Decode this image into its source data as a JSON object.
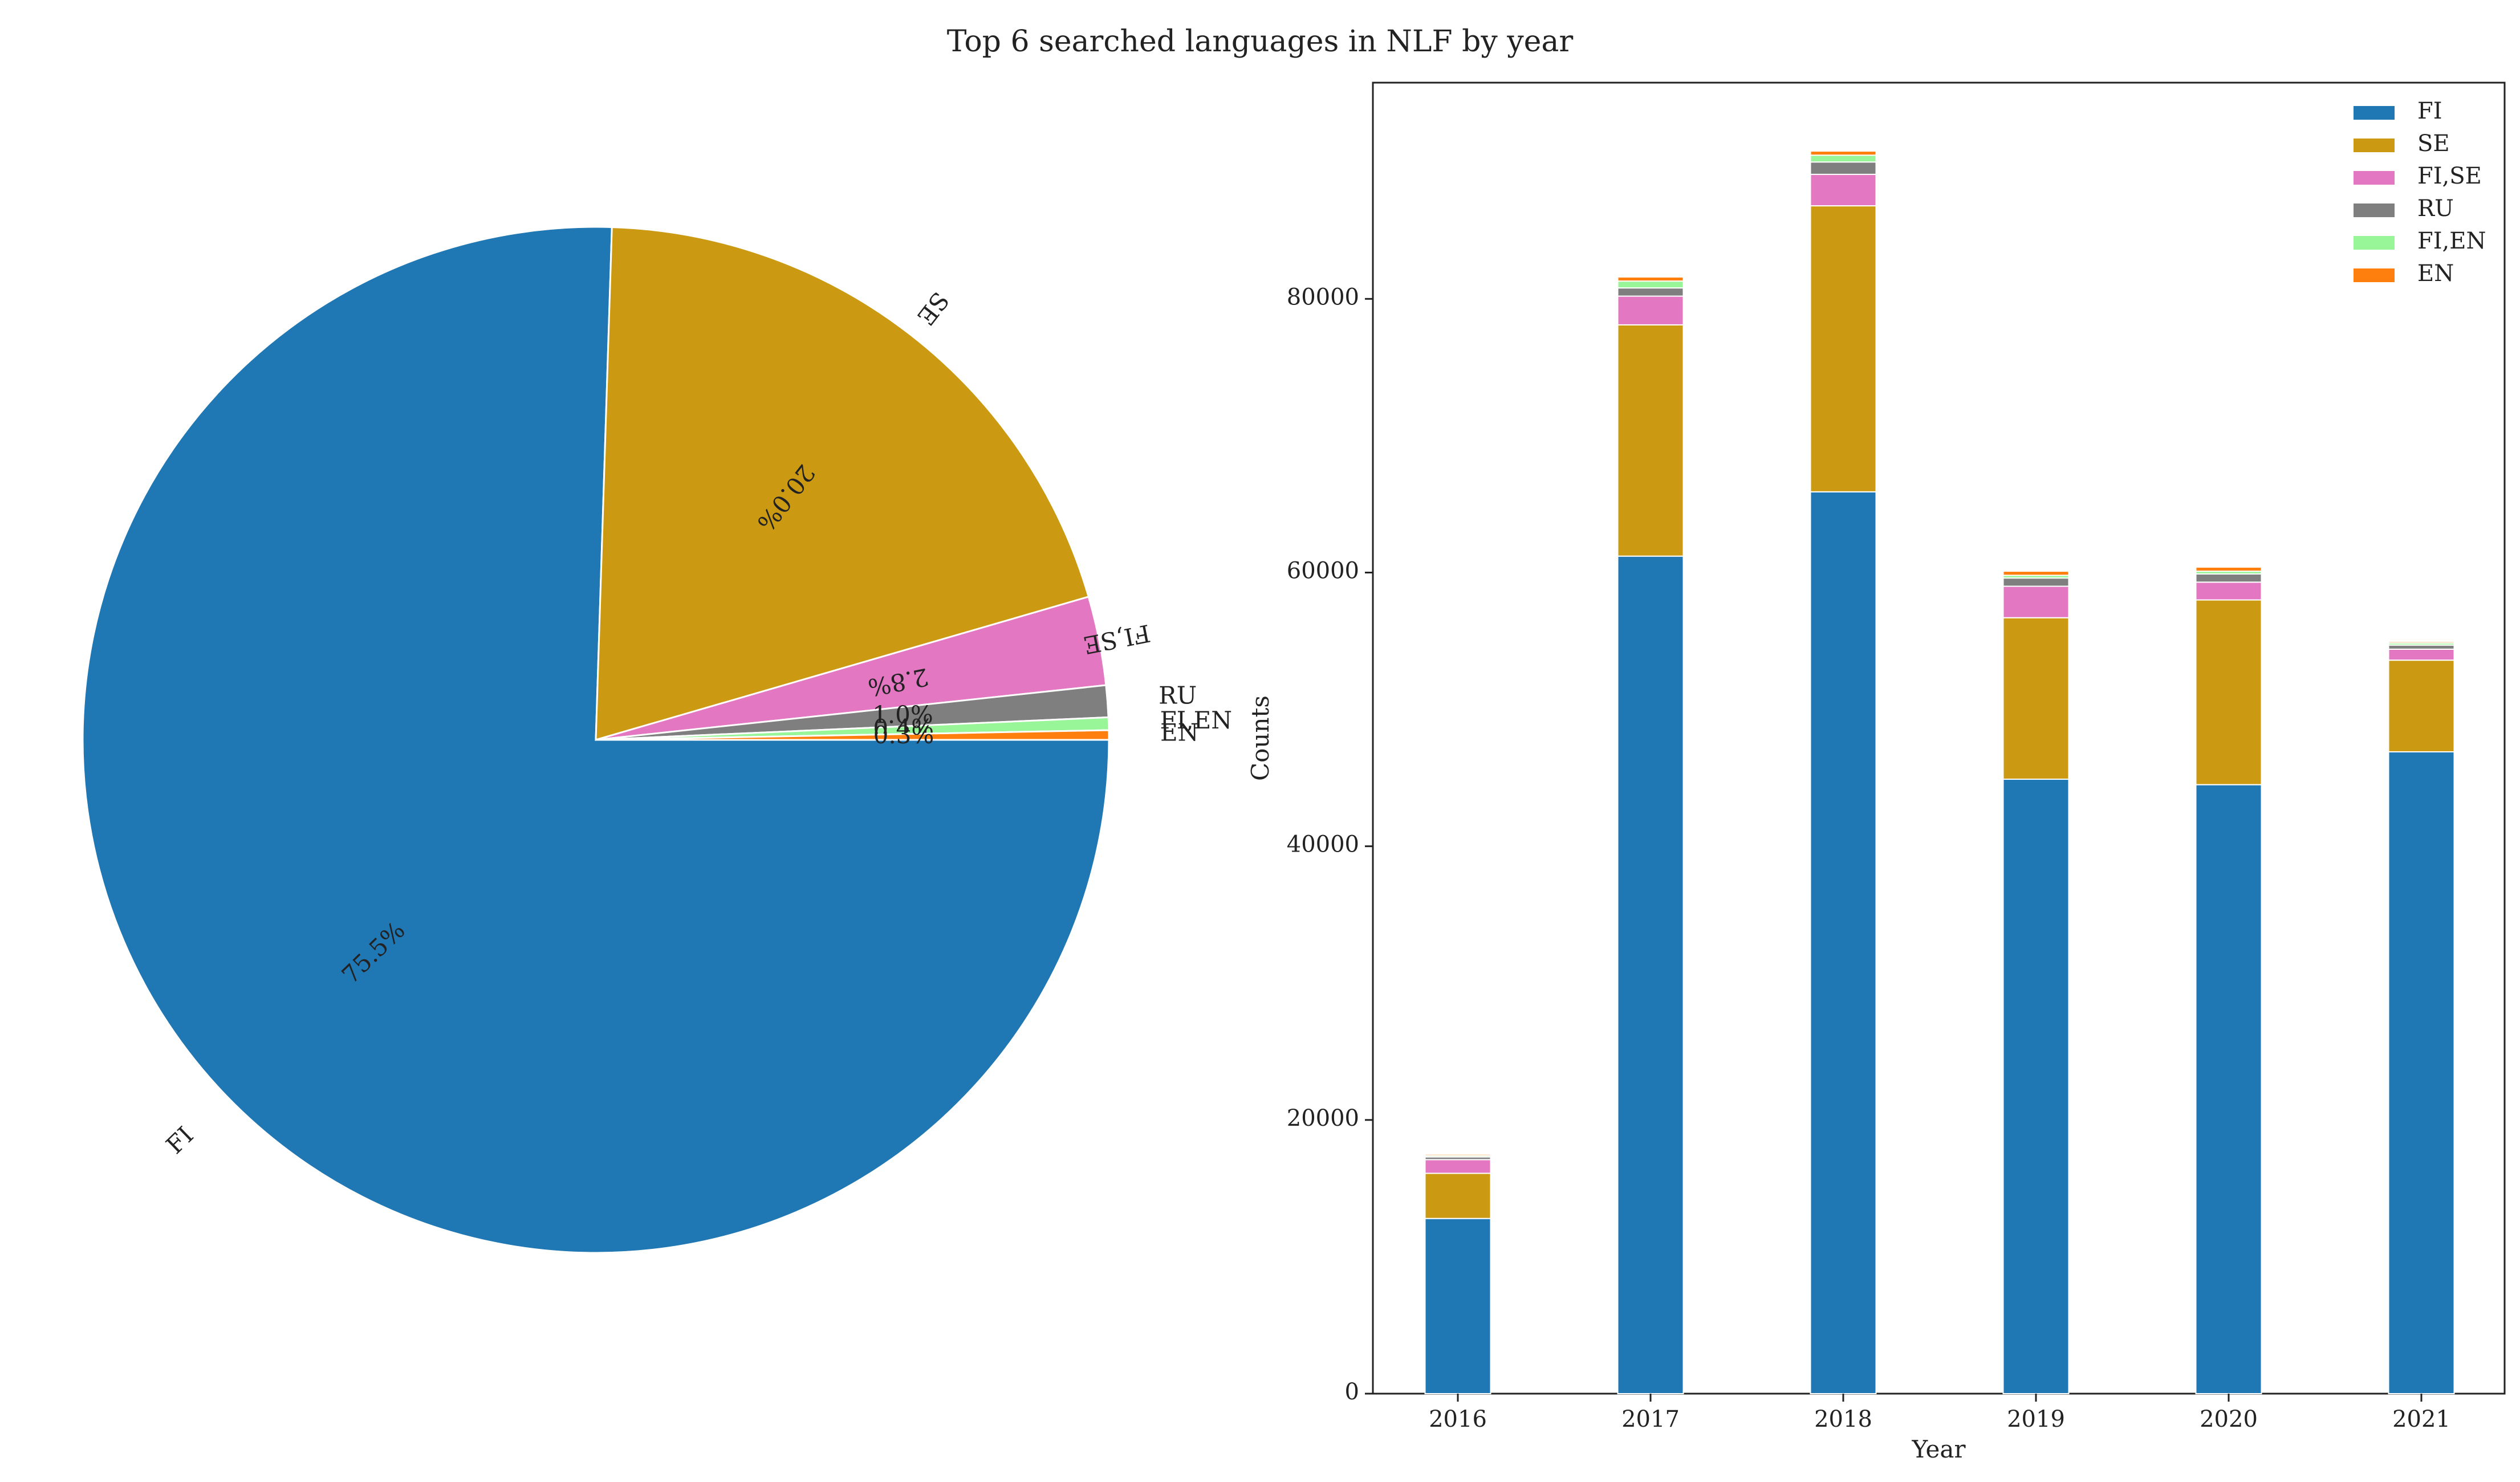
{
  "figure": {
    "title": "Top 6 searched languages in NLF by year"
  },
  "chart_data": [
    {
      "type": "pie",
      "labels": [
        "FI",
        "SE",
        "FI,SE",
        "RU",
        "FI,EN",
        "EN"
      ],
      "pct_labels": [
        "75.5%",
        "20.0%",
        "2.8%",
        "1.0%",
        "0.4%",
        "0.3%"
      ],
      "values": [
        75.5,
        20.0,
        2.8,
        1.0,
        0.4,
        0.3
      ],
      "start_angle": 0,
      "direction": "clockwise",
      "colors": [
        "#1f77b4",
        "#cc9a12",
        "#e377c2",
        "#7f7f7f",
        "#98f598",
        "#ff7f0e"
      ]
    },
    {
      "type": "bar",
      "stacked": true,
      "categories": [
        "2016",
        "2017",
        "2018",
        "2019",
        "2020",
        "2021"
      ],
      "series": [
        {
          "name": "FI",
          "color": "#1f77b4",
          "values": [
            12800,
            61200,
            65900,
            44900,
            44500,
            46900
          ]
        },
        {
          "name": "SE",
          "color": "#cc9a12",
          "values": [
            3300,
            16900,
            20900,
            11800,
            13500,
            6700
          ]
        },
        {
          "name": "FI,SE",
          "color": "#e377c2",
          "values": [
            1000,
            2100,
            2300,
            2300,
            1300,
            800
          ]
        },
        {
          "name": "RU",
          "color": "#7f7f7f",
          "values": [
            200,
            600,
            900,
            600,
            600,
            300
          ]
        },
        {
          "name": "FI,EN",
          "color": "#98f598",
          "values": [
            100,
            500,
            500,
            200,
            200,
            150
          ]
        },
        {
          "name": "EN",
          "color": "#ff7f0e",
          "values": [
            100,
            300,
            300,
            300,
            300,
            100
          ]
        }
      ],
      "xlabel": "Year",
      "ylabel": "Counts",
      "ylim": [
        0,
        95800
      ],
      "yticks": [
        "0",
        "20000",
        "40000",
        "60000",
        "80000"
      ],
      "grid": false,
      "legend": "top-right"
    }
  ]
}
